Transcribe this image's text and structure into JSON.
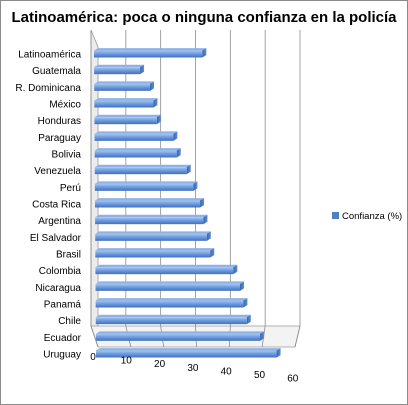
{
  "chart_data": {
    "type": "bar",
    "orientation": "horizontal",
    "title": "Latinoamérica: poca o ninguna confianza en la policía",
    "categories": [
      "Latinoamérica",
      "Guatemala",
      "R. Dominicana",
      "México",
      "Honduras",
      "Paraguay",
      "Bolivia",
      "Venezuela",
      "Perú",
      "Costa Rica",
      "Argentina",
      "El Salvador",
      "Brasil",
      "Colombia",
      "Nicaragua",
      "Panamá",
      "Chile",
      "Ecuador",
      "Uruguay"
    ],
    "series": [
      {
        "name": "Confianza (%)",
        "values": [
          33,
          14,
          17,
          18,
          19,
          24,
          25,
          28,
          30,
          32,
          33,
          34,
          35,
          42,
          44,
          45,
          46,
          50,
          55
        ],
        "color": "#4f81bd"
      }
    ],
    "xlim": [
      0,
      60
    ],
    "xticks": [
      "0",
      "10",
      "20",
      "30",
      "40",
      "50",
      "60"
    ],
    "grid": true,
    "legend_position": "right"
  }
}
